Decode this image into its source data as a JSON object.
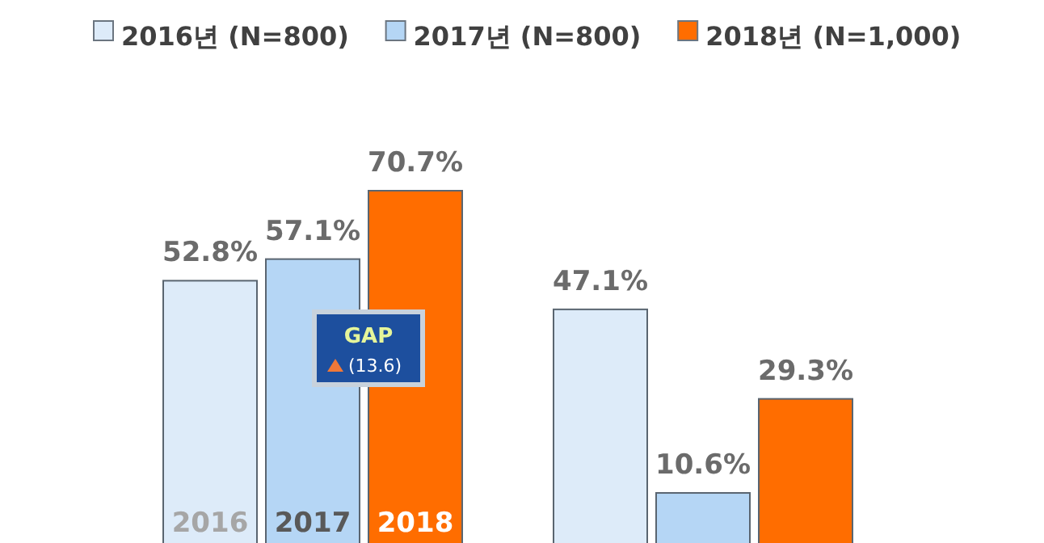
{
  "chart_data": {
    "type": "bar",
    "categories": [
      null,
      null
    ],
    "legend": "top",
    "series": [
      {
        "name": "2016년 (N=800)",
        "color": "#ddebf9",
        "values": [
          52.8,
          47.1
        ],
        "value_labels": [
          "52.8%",
          "47.1%"
        ]
      },
      {
        "name": "2017년 (N=800)",
        "color": "#b5d6f5",
        "values": [
          57.1,
          10.6
        ],
        "value_labels": [
          "57.1%",
          "10.6%"
        ]
      },
      {
        "name": "2018년 (N=1,000)",
        "color": "#ff6d00",
        "values": [
          70.7,
          29.3
        ],
        "value_labels": [
          "70.7%",
          "29.3%"
        ]
      }
    ],
    "annotations": [
      "2016",
      "2017",
      "2018",
      "GAP",
      "(13.6)"
    ]
  }
}
